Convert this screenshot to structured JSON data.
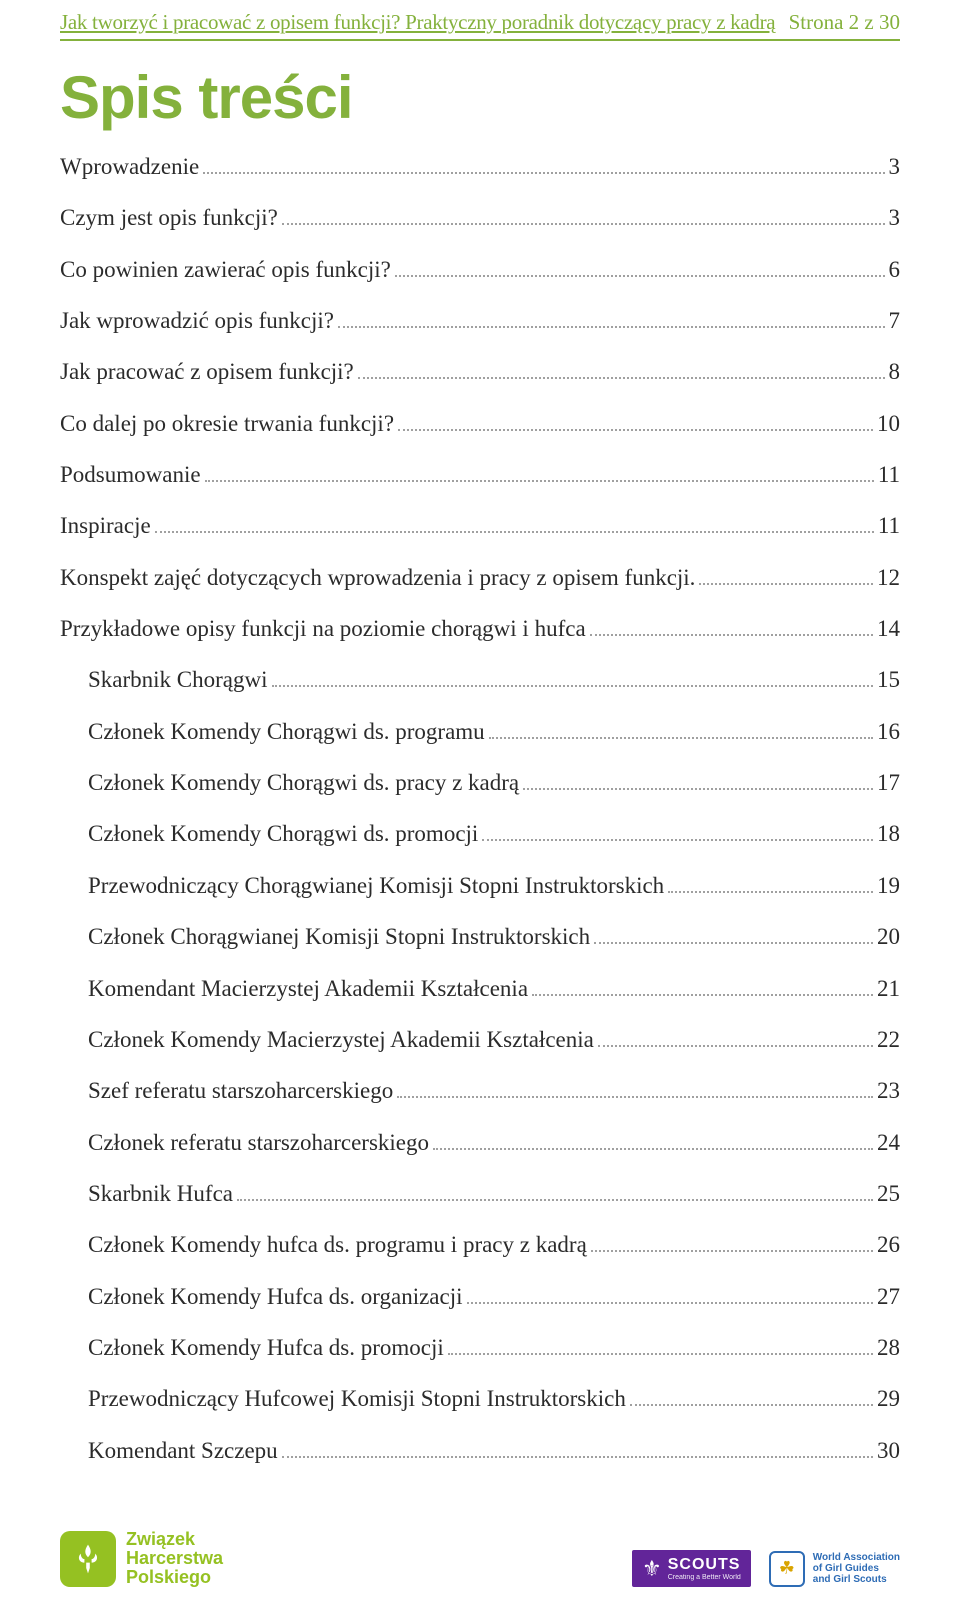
{
  "header": {
    "title": "Jak tworzyć i pracować z opisem funkcji? Praktyczny poradnik dotyczący pracy z kadrą",
    "page_info": "Strona 2 z 30"
  },
  "title": "Spis treści",
  "colors": {
    "accent": "#84b13c",
    "text": "#2b2b2b",
    "leader": "#a0a0a0",
    "zhp_green": "#95c122",
    "scouts_purple": "#622599",
    "wagggs_blue": "#2e6cb5",
    "wagggs_gold": "#d9a400"
  },
  "toc": [
    {
      "label": "Wprowadzenie",
      "page": "3",
      "indent": false
    },
    {
      "label": "Czym jest opis funkcji?",
      "page": "3",
      "indent": false
    },
    {
      "label": "Co powinien zawierać opis funkcji?",
      "page": "6",
      "indent": false
    },
    {
      "label": "Jak wprowadzić opis funkcji?",
      "page": "7",
      "indent": false
    },
    {
      "label": "Jak pracować z opisem funkcji?",
      "page": "8",
      "indent": false
    },
    {
      "label": "Co dalej po okresie trwania funkcji?",
      "page": "10",
      "indent": false
    },
    {
      "label": "Podsumowanie",
      "page": "11",
      "indent": false
    },
    {
      "label": "Inspiracje",
      "page": "11",
      "indent": false
    },
    {
      "label": "Konspekt zajęć dotyczących wprowadzenia i pracy z opisem funkcji.",
      "page": "12",
      "indent": false
    },
    {
      "label": "Przykładowe opisy funkcji na poziomie chorągwi i hufca",
      "page": "14",
      "indent": false
    },
    {
      "label": "Skarbnik Chorągwi",
      "page": "15",
      "indent": true
    },
    {
      "label": "Członek Komendy Chorągwi ds. programu",
      "page": "16",
      "indent": true
    },
    {
      "label": "Członek Komendy Chorągwi ds. pracy z kadrą",
      "page": "17",
      "indent": true
    },
    {
      "label": "Członek Komendy Chorągwi ds. promocji",
      "page": "18",
      "indent": true
    },
    {
      "label": "Przewodniczący Chorągwianej Komisji Stopni Instruktorskich",
      "page": "19",
      "indent": true
    },
    {
      "label": "Członek Chorągwianej Komisji Stopni Instruktorskich",
      "page": "20",
      "indent": true
    },
    {
      "label": "Komendant Macierzystej Akademii Kształcenia",
      "page": "21",
      "indent": true
    },
    {
      "label": "Członek Komendy Macierzystej Akademii Kształcenia",
      "page": "22",
      "indent": true
    },
    {
      "label": "Szef referatu starszoharcerskiego",
      "page": "23",
      "indent": true
    },
    {
      "label": "Członek referatu starszoharcerskiego",
      "page": "24",
      "indent": true
    },
    {
      "label": "Skarbnik Hufca",
      "page": "25",
      "indent": true
    },
    {
      "label": "Członek Komendy hufca ds. programu i pracy z kadrą",
      "page": "26",
      "indent": true
    },
    {
      "label": "Członek Komendy Hufca ds. organizacji",
      "page": "27",
      "indent": true
    },
    {
      "label": "Członek Komendy Hufca ds. promocji",
      "page": "28",
      "indent": true
    },
    {
      "label": "Przewodniczący Hufcowej Komisji Stopni Instruktorskich",
      "page": "29",
      "indent": true
    },
    {
      "label": "Komendant Szczepu",
      "page": "30",
      "indent": true
    }
  ],
  "footer": {
    "zhp": {
      "line1": "Związek",
      "line2": "Harcerstwa",
      "line3": "Polskiego"
    },
    "scouts": {
      "name": "SCOUTS",
      "tagline": "Creating a Better World"
    },
    "wagggs": {
      "line1": "World Association",
      "line2": "of Girl Guides",
      "line3": "and Girl Scouts"
    }
  }
}
